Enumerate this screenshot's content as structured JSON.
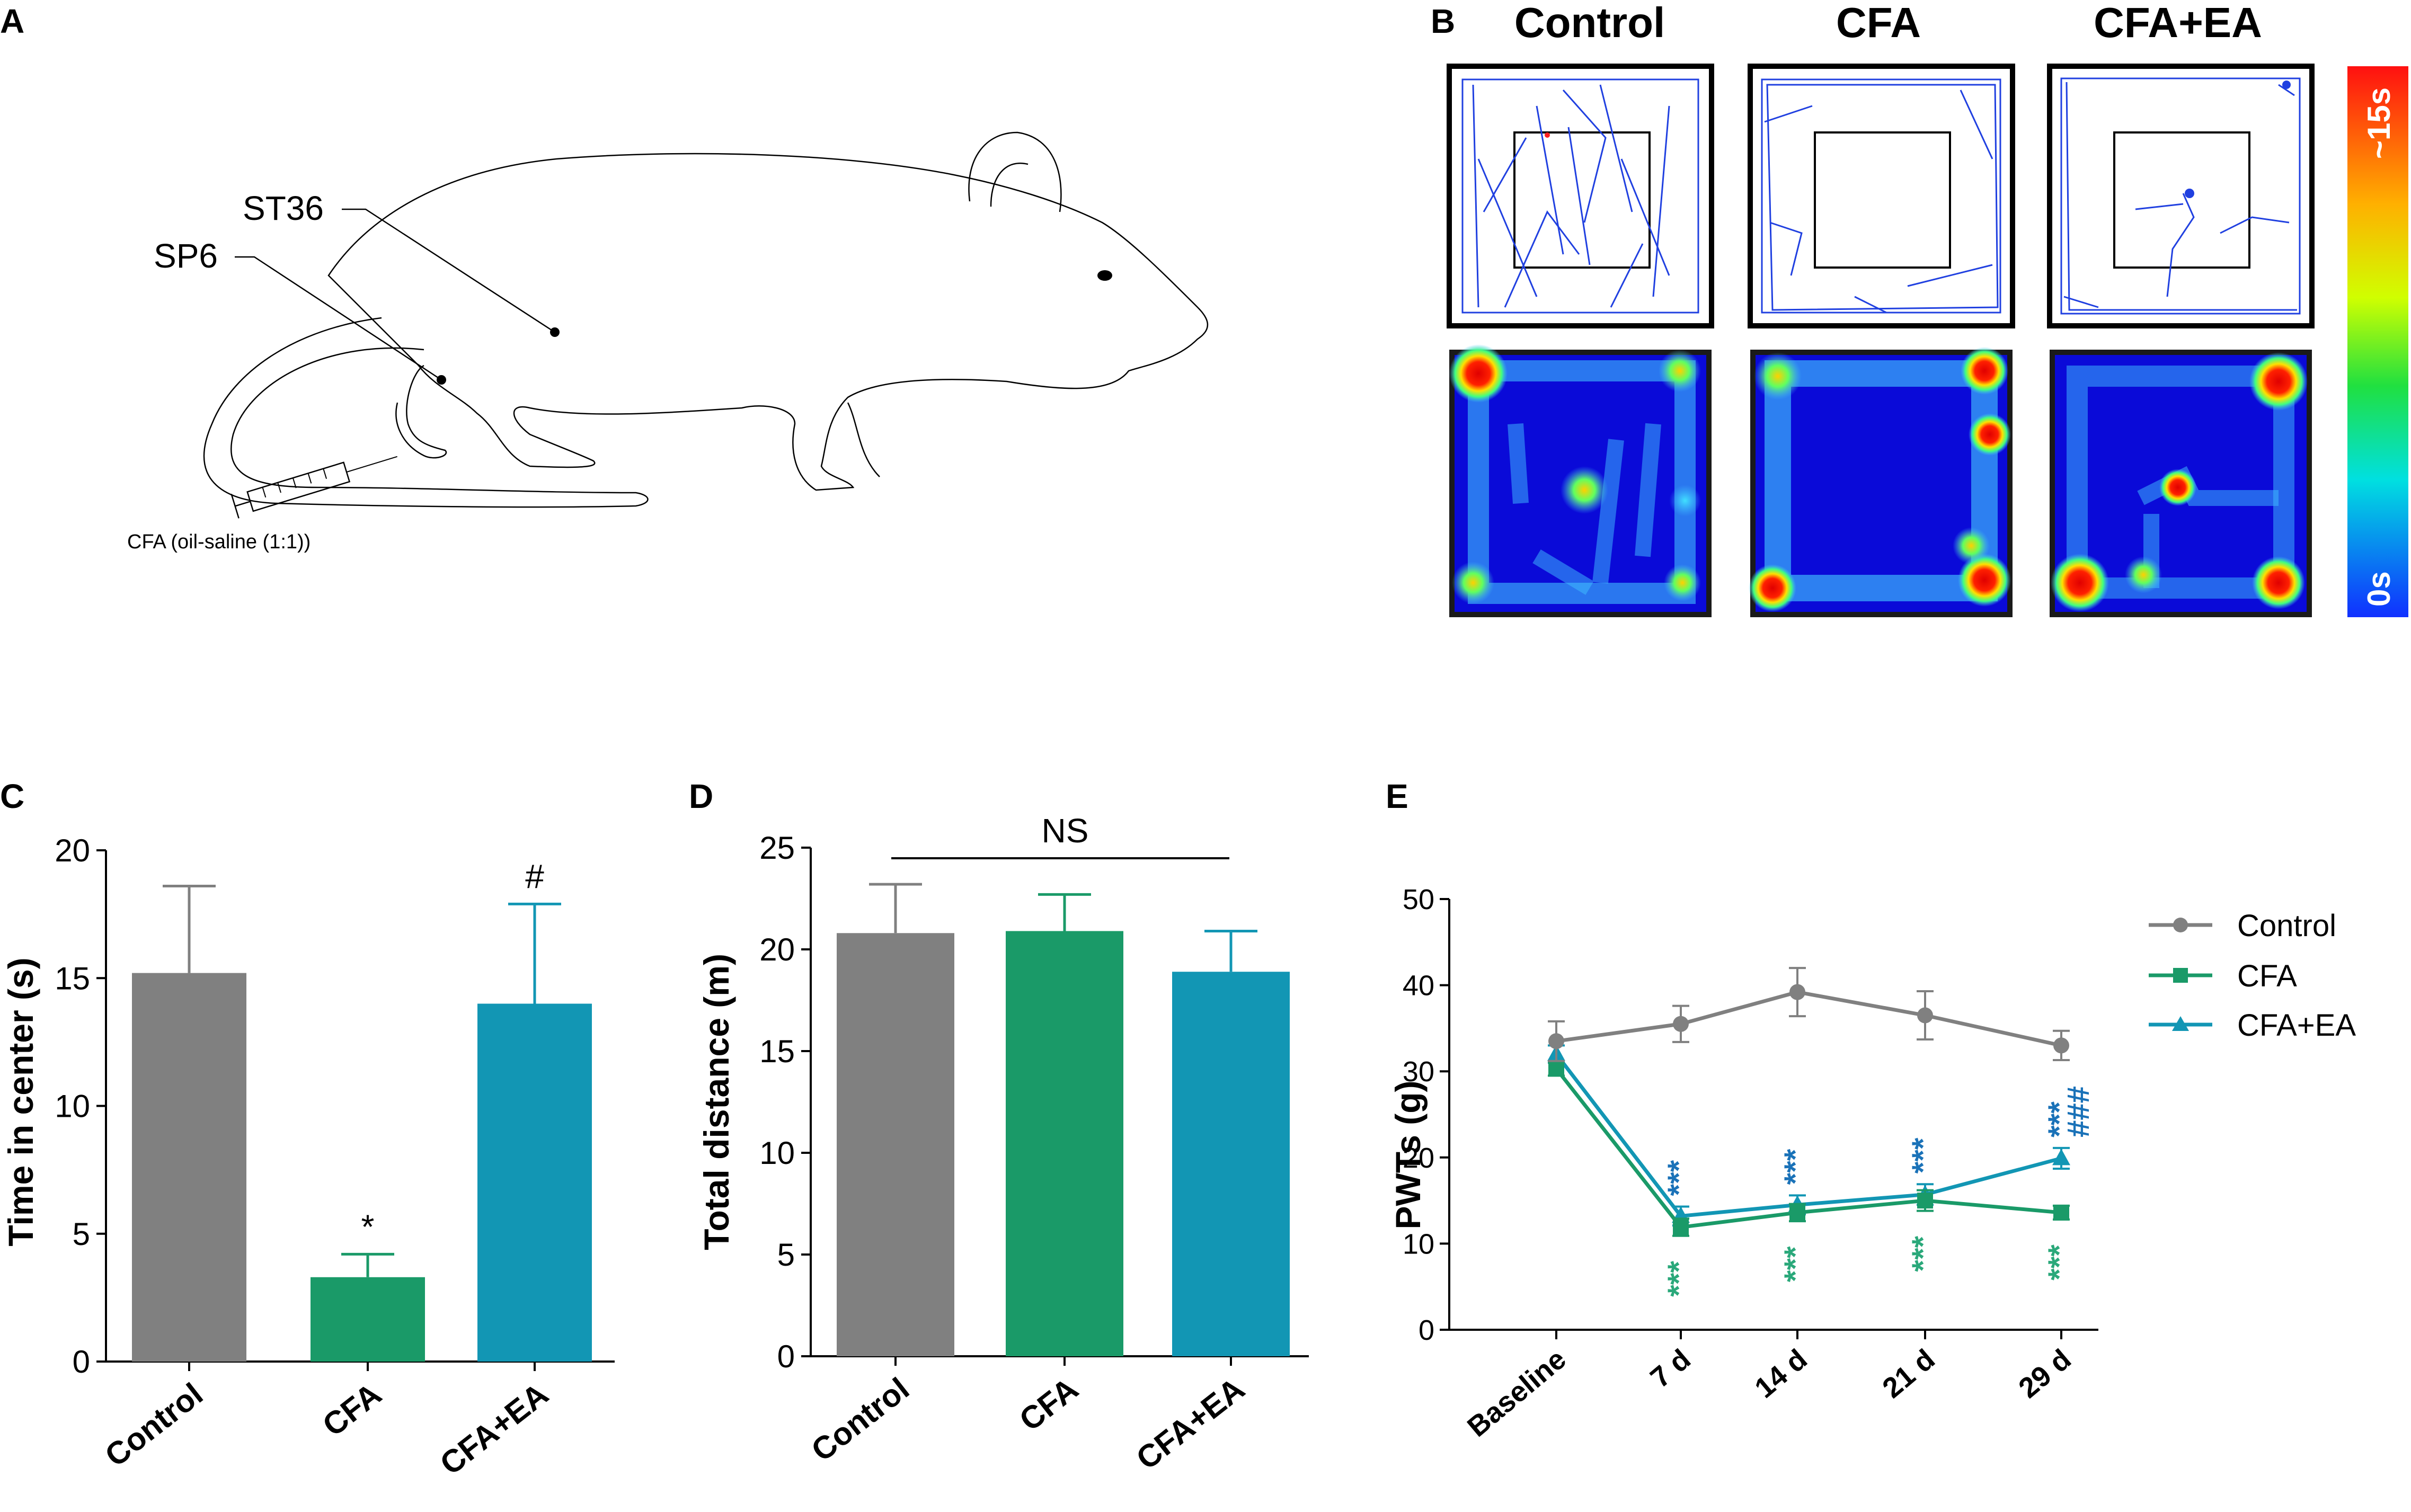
{
  "panel_labels": {
    "a": "A",
    "b": "B",
    "c": "C",
    "d": "D",
    "e": "E"
  },
  "panel_a": {
    "label_st36": "ST36",
    "label_sp6": "SP6",
    "caption": "CFA (oil-saline (1:1))"
  },
  "panel_b": {
    "columns": [
      "Control",
      "CFA",
      "CFA+EA"
    ],
    "colorbar": {
      "top_label": "~15s",
      "bottom_label": "0s"
    }
  },
  "colors": {
    "control": "#808080",
    "cfa": "#1a9a68",
    "cfa_ea": "#1296b4",
    "cfa_star": "#2aa87a",
    "ea_star": "#1a72b8",
    "track": "#2040e0"
  },
  "chart_data": [
    {
      "id": "C",
      "type": "bar",
      "categories": [
        "Control",
        "CFA",
        "CFA+EA"
      ],
      "values": [
        15.2,
        3.3,
        14.0
      ],
      "errors": [
        3.4,
        0.9,
        3.9
      ],
      "annotations": [
        "",
        "*",
        "#"
      ],
      "title": "",
      "xlabel": "",
      "ylabel": "Time in center (s)",
      "ylim": [
        0,
        20
      ],
      "yticks": [
        0,
        5,
        10,
        15,
        20
      ]
    },
    {
      "id": "D",
      "type": "bar",
      "categories": [
        "Control",
        "CFA",
        "CFA+EA"
      ],
      "values": [
        20.8,
        20.9,
        18.9
      ],
      "errors": [
        2.4,
        1.8,
        2.0
      ],
      "annotation": "NS",
      "title": "",
      "xlabel": "",
      "ylabel": "Total distance (m)",
      "ylim": [
        0,
        25
      ],
      "yticks": [
        0,
        5,
        10,
        15,
        20,
        25
      ]
    },
    {
      "id": "E",
      "type": "line",
      "x": [
        "Baseline",
        "7 d",
        "14 d",
        "21 d",
        "29 d"
      ],
      "series": [
        {
          "name": "Control",
          "values": [
            33.5,
            35.5,
            39.2,
            36.5,
            33.0
          ],
          "errors": [
            2.3,
            2.1,
            2.8,
            2.8,
            1.7
          ],
          "marker": "circle"
        },
        {
          "name": "CFA",
          "values": [
            30.3,
            11.9,
            13.6,
            15.0,
            13.6
          ],
          "errors": [
            0.8,
            1.0,
            1.0,
            1.2,
            0.8
          ],
          "marker": "square"
        },
        {
          "name": "CFA+EA",
          "values": [
            32.0,
            13.2,
            14.5,
            15.7,
            19.9
          ],
          "errors": [
            1.0,
            1.1,
            1.1,
            1.2,
            1.2
          ],
          "marker": "triangle"
        }
      ],
      "annotations": {
        "cfa_ea": [
          "",
          "***",
          "***",
          "***",
          "***"
        ],
        "cfa": [
          "",
          "***",
          "***",
          "***",
          "***"
        ],
        "hash_29d": "###"
      },
      "title": "",
      "xlabel": "",
      "ylabel": "PWTs (g)",
      "ylim": [
        0,
        50
      ],
      "yticks": [
        0,
        10,
        20,
        30,
        40,
        50
      ]
    }
  ]
}
